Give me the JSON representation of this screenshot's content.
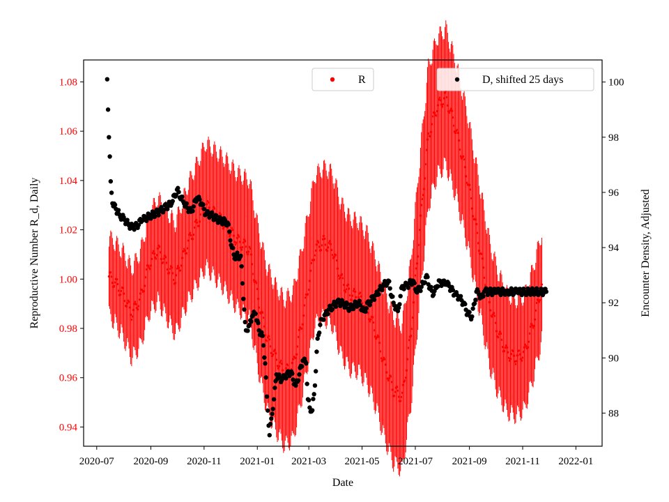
{
  "chart_data": {
    "type": "scatter",
    "xlabel": "Date",
    "x_ticks": [
      "2020-07",
      "2020-09",
      "2020-11",
      "2021-01",
      "2021-03",
      "2021-05",
      "2021-07",
      "2021-09",
      "2021-11",
      "2022-01"
    ],
    "x_tick_days": [
      0,
      62,
      123,
      184,
      243,
      304,
      365,
      427,
      488,
      549
    ],
    "xlim_days": [
      -15,
      579
    ],
    "left_axis": {
      "label": "Reproductive Number R_d, Daily",
      "color": "#ff0000",
      "ticks": [
        "0.94",
        "0.96",
        "0.98",
        "1.00",
        "1.02",
        "1.04",
        "1.06",
        "1.08"
      ],
      "ylim": [
        0.9322,
        1.0889
      ]
    },
    "right_axis": {
      "label": "Encounter Density, Adjusted",
      "color": "#000000",
      "ticks": [
        "88",
        "90",
        "92",
        "94",
        "96",
        "98",
        "100"
      ],
      "ylim": [
        86.8,
        100.8
      ]
    },
    "series": [
      {
        "name": "R",
        "color": "#ff0000",
        "axis": "left",
        "marker": "dot",
        "error_bars": true,
        "anchors_day": [
          14,
          20,
          30,
          40,
          50,
          60,
          70,
          80,
          90,
          105,
          125,
          145,
          160,
          175,
          185,
          195,
          205,
          215,
          225,
          235,
          250,
          260,
          270,
          280,
          290,
          300,
          310,
          320,
          330,
          340,
          350,
          360,
          370,
          380,
          390,
          400,
          412,
          425,
          440,
          450,
          460,
          470,
          480,
          490,
          500,
          510
        ],
        "anchors_value": [
          1.001,
          0.999,
          0.994,
          0.986,
          0.992,
          1.006,
          1.012,
          1.006,
          1.0,
          1.015,
          1.03,
          1.023,
          1.016,
          1.012,
          0.992,
          0.976,
          0.968,
          0.962,
          0.965,
          0.982,
          1.012,
          1.015,
          1.012,
          1.0,
          0.994,
          0.993,
          0.988,
          0.978,
          0.965,
          0.955,
          0.952,
          0.978,
          1.02,
          1.058,
          1.07,
          1.074,
          1.06,
          1.04,
          1.01,
          0.99,
          0.978,
          0.97,
          0.968,
          0.97,
          0.982,
          0.997
        ],
        "error_half_width": {
          "start": 0.012,
          "peak": 0.028,
          "end": 0.018
        }
      },
      {
        "name": "D, shifted 25 days",
        "color": "#000000",
        "axis": "right",
        "marker": "dot",
        "anchors_day": [
          12,
          13,
          14,
          15,
          16,
          18,
          22,
          26,
          32,
          37,
          42,
          46,
          52,
          58,
          65,
          72,
          80,
          86,
          92,
          100,
          108,
          115,
          120,
          125,
          130,
          140,
          150,
          155,
          158,
          160,
          165,
          170,
          171,
          175,
          178,
          182,
          186,
          190,
          193,
          195,
          198,
          200,
          203,
          206,
          208,
          212,
          216,
          222,
          228,
          232,
          236,
          240,
          242,
          244,
          247,
          250,
          253,
          256,
          258,
          262,
          268,
          275,
          282,
          290,
          300,
          306,
          312,
          320,
          328,
          334,
          340,
          345,
          350,
          356,
          362,
          366,
          370,
          374,
          378,
          382,
          386,
          390,
          393,
          396,
          400,
          404,
          410,
          415,
          420,
          425,
          430,
          435,
          438,
          441,
          444,
          447,
          452,
          458,
          464,
          470,
          476,
          482,
          490,
          500,
          508,
          515
        ],
        "anchors_value": [
          100.1,
          99.0,
          98.0,
          97.3,
          96.4,
          95.6,
          95.4,
          95.2,
          95.0,
          94.8,
          94.7,
          94.8,
          95.0,
          95.1,
          95.2,
          95.3,
          95.5,
          95.6,
          96.1,
          95.6,
          95.3,
          95.8,
          95.6,
          95.2,
          95.2,
          95.0,
          94.9,
          94.0,
          93.6,
          93.7,
          93.7,
          91.3,
          91.0,
          91.2,
          91.5,
          91.6,
          91.0,
          90.8,
          89.8,
          88.6,
          87.2,
          87.8,
          88.5,
          89.4,
          89.3,
          89.2,
          89.3,
          89.5,
          89.0,
          89.4,
          89.9,
          89.8,
          88.5,
          88.2,
          88.1,
          89.0,
          90.7,
          91.2,
          91.4,
          91.6,
          91.8,
          92.0,
          92.0,
          91.8,
          92.0,
          91.7,
          92.0,
          92.3,
          92.6,
          92.8,
          92.0,
          91.7,
          92.6,
          92.6,
          92.8,
          92.4,
          92.5,
          92.7,
          93.0,
          92.5,
          92.3,
          92.6,
          92.8,
          92.7,
          92.7,
          92.6,
          92.3,
          92.2,
          92.0,
          91.6,
          91.5,
          92.4,
          92.3,
          92.2,
          92.4,
          92.4,
          92.4,
          92.4,
          92.4,
          92.4,
          92.4,
          92.4,
          92.4,
          92.4,
          92.4,
          92.4
        ]
      }
    ],
    "legend": [
      {
        "label": "R",
        "position": "top-center"
      },
      {
        "label": "D, shifted 25 days",
        "position": "top-right"
      }
    ]
  }
}
